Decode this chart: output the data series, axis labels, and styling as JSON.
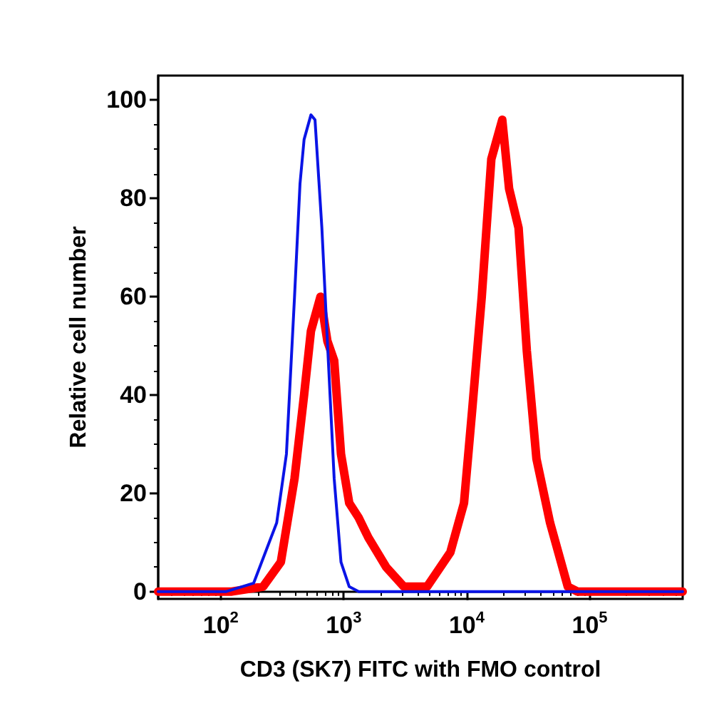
{
  "chart_data": {
    "type": "line",
    "xlabel": "CD3 (SK7) FITC with FMO control",
    "ylabel": "Relative cell number",
    "log": "x",
    "xlim": [
      31,
      570000
    ],
    "ylim": [
      -1.5,
      105
    ],
    "xticks": [
      {
        "value": 100,
        "label": "10$^{2}$"
      },
      {
        "value": 1000,
        "label": "10$^{3}$"
      },
      {
        "value": 10000,
        "label": "10$^{4}$"
      },
      {
        "value": 100000,
        "label": "10$^{5}$"
      }
    ],
    "yticks": [
      0,
      20,
      40,
      60,
      80,
      100
    ],
    "marker": "none",
    "line_style": "solid",
    "series": [
      {
        "color": "#0a14e6",
        "x": [
          31,
          111,
          185,
          285,
          342,
          398,
          441,
          476,
          541,
          584,
          664,
          736,
          836,
          950,
          1108,
          1325,
          570000
        ],
        "values": [
          0,
          0,
          1.7,
          14,
          28,
          60,
          83,
          92,
          97,
          96,
          74,
          51,
          23,
          6,
          1,
          0,
          0
        ]
      },
      {
        "color": "#ff0000",
        "x": [
          31,
          123,
          221,
          308,
          398,
          476,
          541,
          647,
          736,
          836,
          950,
          1108,
          1325,
          1585,
          2210,
          3080,
          4760,
          7360,
          9500,
          11080,
          13250,
          15850,
          19450,
          22100,
          26400,
          30800,
          36900,
          47600,
          66400,
          79400,
          570000
        ],
        "values": [
          0,
          0,
          1,
          6,
          23,
          40,
          53,
          60,
          51,
          47,
          28,
          18,
          15,
          11,
          5,
          1,
          1,
          8,
          18,
          37,
          60,
          88,
          96,
          82,
          74,
          49,
          27,
          14,
          1,
          0,
          0
        ]
      }
    ]
  }
}
